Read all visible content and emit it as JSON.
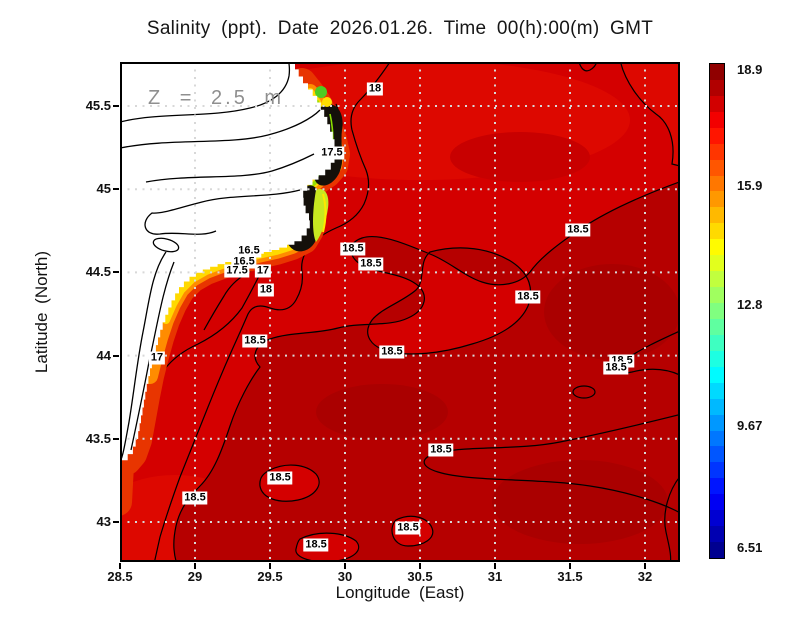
{
  "title": "Salinity (ppt). Date 2026.01.26. Time 00(h):00(m) GMT",
  "annotation": {
    "depth": "Z = 2.5 m"
  },
  "axes": {
    "x_label": "Longitude (East)",
    "y_label": "Latitude (North)"
  },
  "chart_data": {
    "type": "heatmap",
    "subtype": "filled-contour-map",
    "title": "Salinity (ppt). Date 2026.01.26. Time 00(h):00(m) GMT",
    "variable": "Salinity (ppt)",
    "date": "2026.01.26",
    "time": "00(h):00(m) GMT",
    "depth_annotation": "Z = 2.5 m",
    "xlabel": "Longitude (East)",
    "ylabel": "Latitude (North)",
    "xlim": [
      28.5,
      32.233
    ],
    "ylim": [
      42.76,
      45.764
    ],
    "xticks": [
      28.5,
      29,
      29.5,
      30,
      30.5,
      31,
      31.5,
      32
    ],
    "xtick_labels": [
      "28.5",
      "29",
      "29.5",
      "30",
      "30.5",
      "31",
      "31.5",
      "32"
    ],
    "yticks": [
      45.5,
      45,
      44.5,
      44,
      43.5,
      43
    ],
    "ytick_labels": [
      "45.5",
      "45",
      "44.5",
      "44",
      "43.5",
      "43"
    ],
    "grid": "dotted light-gray at every 0.5 degree",
    "contour_interval": 0.5,
    "contour_levels_labeled": [
      16.5,
      17,
      17.5,
      18,
      18.5
    ],
    "colorbar": {
      "position": "right",
      "colormap": "jet",
      "min": 6.51,
      "max": 18.9,
      "segments": 31,
      "tick_labels": [
        "18.9",
        "15.9",
        "12.8",
        "9.67",
        "6.51"
      ],
      "tick_values": [
        18.9,
        15.9,
        12.8,
        9.67,
        6.51
      ]
    },
    "land": "white landmass (Danube delta coast) in north-west with black coastline overlay; low-salinity plume (black/green/yellow/orange bands) along the coast",
    "contour_labels": [
      {
        "value": "18",
        "lon": 30.2,
        "lat": 45.602
      },
      {
        "value": "17.5",
        "lon": 29.913,
        "lat": 45.218
      },
      {
        "value": "16.5",
        "lon": 29.36,
        "lat": 44.629
      },
      {
        "value": "16.5",
        "lon": 29.327,
        "lat": 44.563
      },
      {
        "value": "17.5",
        "lon": 29.28,
        "lat": 44.508
      },
      {
        "value": "17",
        "lon": 29.453,
        "lat": 44.508
      },
      {
        "value": "18",
        "lon": 29.473,
        "lat": 44.394
      },
      {
        "value": "18.5",
        "lon": 30.053,
        "lat": 44.641
      },
      {
        "value": "18.5",
        "lon": 30.173,
        "lat": 44.551
      },
      {
        "value": "18.5",
        "lon": 31.553,
        "lat": 44.755
      },
      {
        "value": "18.5",
        "lon": 31.22,
        "lat": 44.352
      },
      {
        "value": "17",
        "lon": 28.747,
        "lat": 43.986
      },
      {
        "value": "18.5",
        "lon": 29.4,
        "lat": 44.088
      },
      {
        "value": "18.5",
        "lon": 30.313,
        "lat": 44.022
      },
      {
        "value": "18.5",
        "lon": 31.847,
        "lat": 43.968
      },
      {
        "value": "18.5",
        "lon": 31.807,
        "lat": 43.926
      },
      {
        "value": "18.5",
        "lon": 30.64,
        "lat": 43.433
      },
      {
        "value": "18.5",
        "lon": 29.567,
        "lat": 43.264
      },
      {
        "value": "18.5",
        "lon": 29.0,
        "lat": 43.144
      },
      {
        "value": "18.5",
        "lon": 30.42,
        "lat": 42.964
      },
      {
        "value": "18.5",
        "lon": 29.807,
        "lat": 42.862
      }
    ],
    "colors": {
      "sea_base": "#d40000",
      "sea_bright": "#dd0800",
      "sea_dark": "#b60000",
      "sea_darker": "#aa0000",
      "plume_outer": "#e83500",
      "plume_orange": "#ff8c00",
      "plume_yellow": "#ffd900",
      "plume_green": "#9ade00",
      "river_mouth_dense": "#14100a",
      "land": "#ffffff",
      "grid_dots": "#d8d8d8"
    }
  }
}
